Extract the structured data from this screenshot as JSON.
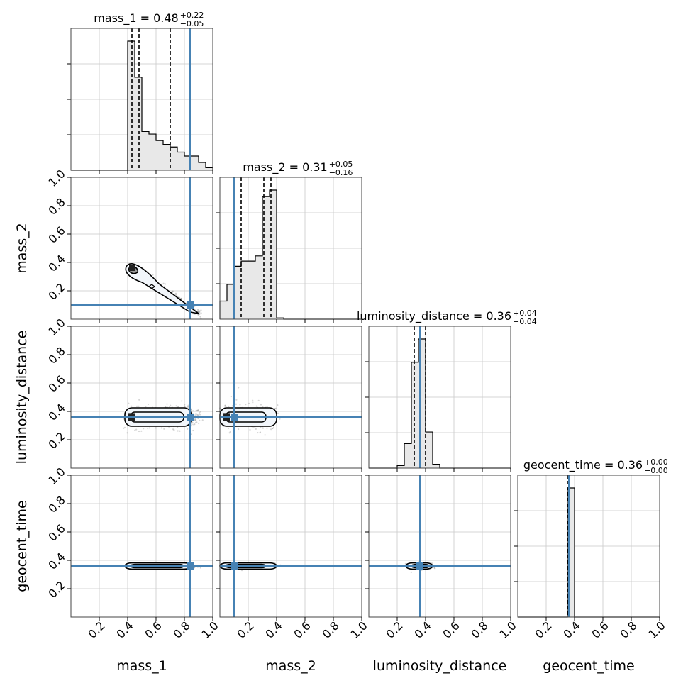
{
  "chart_data": {
    "type": "corner",
    "parameters": [
      "mass_1",
      "mass_2",
      "luminosity_distance",
      "geocent_time"
    ],
    "axis_range": [
      0,
      1
    ],
    "ticks": [
      0.2,
      0.4,
      0.6,
      0.8,
      1.0
    ],
    "tick_labels": [
      "0.2",
      "0.4",
      "0.6",
      "0.8",
      "1.0"
    ],
    "grid": true,
    "truth_color": "#4682b4",
    "truths": {
      "mass_1": 0.84,
      "mass_2": 0.1,
      "luminosity_distance": 0.36,
      "geocent_time": 0.36
    },
    "titles": [
      {
        "param": "mass_1",
        "text": "mass_1 = 0.48",
        "plus": "+0.22",
        "minus": "−0.05"
      },
      {
        "param": "mass_2",
        "text": "mass_2 = 0.31",
        "plus": "+0.05",
        "minus": "−0.16"
      },
      {
        "param": "luminosity_distance",
        "text": "luminosity_distance = 0.36",
        "plus": "+0.04",
        "minus": "−0.04"
      },
      {
        "param": "geocent_time",
        "text": "geocent_time = 0.36",
        "plus": "+0.00",
        "minus": "−0.00"
      }
    ],
    "quantile_lines": {
      "mass_1": [
        0.43,
        0.48,
        0.7
      ],
      "mass_2": [
        0.15,
        0.31,
        0.36
      ],
      "luminosity_distance": [
        0.32,
        0.36,
        0.4
      ],
      "geocent_time": [
        0.355,
        0.36,
        0.362
      ]
    },
    "histograms": {
      "mass_1": {
        "bin_edges": [
          0.0,
          0.05,
          0.1,
          0.15,
          0.2,
          0.25,
          0.3,
          0.35,
          0.4,
          0.45,
          0.5,
          0.55,
          0.6,
          0.65,
          0.7,
          0.75,
          0.8,
          0.85,
          0.9,
          0.95,
          1.0
        ],
        "heights": [
          0,
          0,
          0,
          0,
          0,
          0,
          0,
          0,
          1.0,
          0.72,
          0.3,
          0.28,
          0.23,
          0.2,
          0.18,
          0.14,
          0.11,
          0.11,
          0.06,
          0.02
        ]
      },
      "mass_2": {
        "bin_edges": [
          0.0,
          0.05,
          0.1,
          0.15,
          0.2,
          0.25,
          0.3,
          0.35,
          0.4,
          0.45,
          0.5,
          0.55,
          0.6,
          0.65,
          0.7,
          0.75,
          0.8,
          0.85,
          0.9,
          0.95,
          1.0
        ],
        "heights": [
          0.14,
          0.27,
          0.41,
          0.45,
          0.45,
          0.49,
          0.95,
          1.0,
          0.01,
          0,
          0,
          0,
          0,
          0,
          0,
          0,
          0,
          0,
          0,
          0
        ]
      },
      "luminosity_distance": {
        "bin_edges": [
          0.0,
          0.05,
          0.1,
          0.15,
          0.2,
          0.25,
          0.3,
          0.35,
          0.4,
          0.45,
          0.5,
          0.55,
          0.6,
          0.65,
          0.7,
          0.75,
          0.8,
          0.85,
          0.9,
          0.95,
          1.0
        ],
        "heights": [
          0,
          0,
          0,
          0,
          0.02,
          0.19,
          0.82,
          1.0,
          0.28,
          0.03,
          0,
          0,
          0,
          0,
          0,
          0,
          0,
          0,
          0,
          0
        ]
      },
      "geocent_time": {
        "bin_edges": [
          0.0,
          0.05,
          0.1,
          0.15,
          0.2,
          0.25,
          0.3,
          0.35,
          0.4,
          0.45,
          0.5,
          0.55,
          0.6,
          0.65,
          0.7,
          0.75,
          0.8,
          0.85,
          0.9,
          0.95,
          1.0
        ],
        "heights": [
          0,
          0,
          0,
          0,
          0,
          0,
          0,
          1.0,
          0,
          0,
          0,
          0,
          0,
          0,
          0,
          0,
          0,
          0,
          0,
          0
        ]
      }
    }
  }
}
